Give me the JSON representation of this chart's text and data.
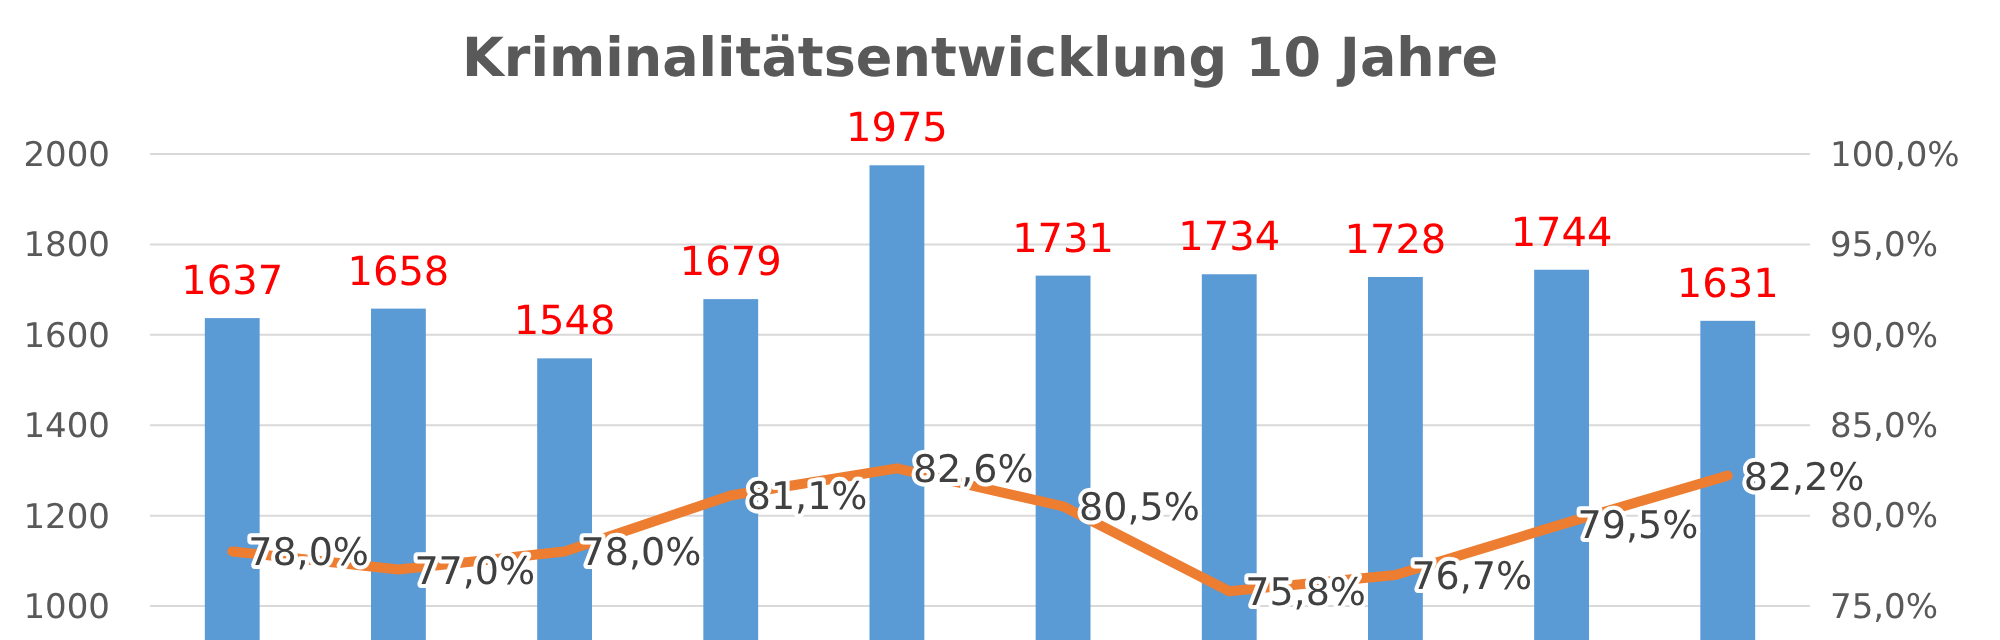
{
  "chart_data": {
    "type": "bar",
    "title": "Kriminalitätsentwicklung 10 Jahre",
    "categories": [
      null,
      null,
      null,
      null,
      null,
      null,
      null,
      null,
      null,
      null
    ],
    "series": [
      {
        "color": "#5b9bd5",
        "values": [
          1637,
          1658,
          1548,
          1679,
          1975,
          1731,
          1734,
          1728,
          1744,
          1631
        ]
      },
      {
        "type": "line",
        "axis": "y2",
        "color": "#ed7d31",
        "values": [
          78.0,
          77.0,
          78.0,
          81.1,
          82.6,
          80.5,
          75.8,
          76.7,
          79.5,
          82.2
        ],
        "value_labels": [
          "78,0%",
          "77,0%",
          "78,0%",
          "81,1%",
          "82,6%",
          "80,5%",
          "75,8%",
          "76,7%",
          "79,5%",
          "82,2%"
        ]
      }
    ],
    "data_labels": true,
    "ylim": [
      925,
      2000
    ],
    "yticks": [
      1000,
      1200,
      1400,
      1600,
      1800,
      2000
    ],
    "y2lim": [
      73.1,
      100
    ],
    "y2ticks": [
      {
        "value": 75,
        "label": "75,0%"
      },
      {
        "value": 80,
        "label": "80,0%"
      },
      {
        "value": 85,
        "label": "85,0%"
      },
      {
        "value": 90,
        "label": "90,0%"
      },
      {
        "value": 95,
        "label": "95,0%"
      },
      {
        "value": 100,
        "label": "100,0%"
      }
    ],
    "grid": "y",
    "marker": "none",
    "line_style": "solid"
  }
}
